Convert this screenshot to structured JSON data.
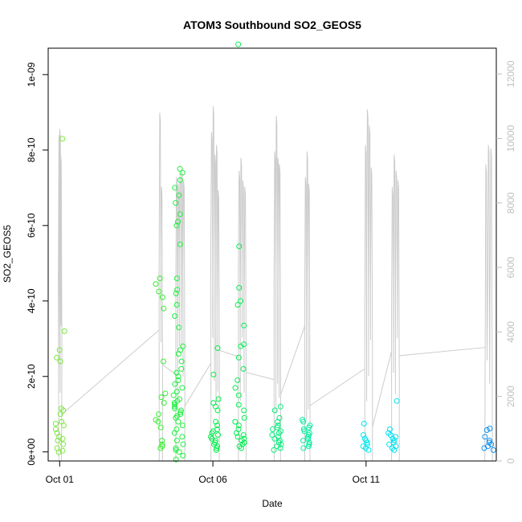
{
  "chart_data": {
    "type": "scatter",
    "title": "ATOM3 Southbound SO2_GEOS5",
    "xlabel": "Date",
    "ylabel": "SO2_GEOS5",
    "x_axis": {
      "type": "date",
      "lim": [
        "2017-09-30T15:00",
        "2017-10-15T06:00"
      ],
      "ticks": [
        "Oct 01",
        "Oct 06",
        "Oct 11"
      ],
      "tick_dates": [
        "2017-10-01",
        "2017-10-06",
        "2017-10-11"
      ]
    },
    "y_axis": {
      "lim": [
        -2.4e-11,
        1.07e-09
      ],
      "ticks": [
        "0e+00",
        "2e-10",
        "4e-10",
        "6e-10",
        "8e-10",
        "1e-09"
      ],
      "tick_values": [
        0,
        2e-10,
        4e-10,
        6e-10,
        8e-10,
        1e-09
      ]
    },
    "y2_axis": {
      "lim": [
        0,
        12800
      ],
      "ticks": [
        "0",
        "2000",
        "4000",
        "6000",
        "8000",
        "10000",
        "12000"
      ],
      "tick_values": [
        0,
        2000,
        4000,
        6000,
        8000,
        10000,
        12000
      ],
      "color": "#bfbfbf"
    },
    "grid": false,
    "colors": {
      "points_start": "#7fe640",
      "points_mid": "#00f060",
      "points_late": "#00e8f0",
      "points_end": "#1090f0",
      "altitude_line": "#cccccc",
      "axis": "#000000"
    },
    "points_series": {
      "name": "SO2_GEOS5",
      "note_color": "color ramps from yellow-green (early) through green, cyan to blue (late)",
      "clusters": [
        {
          "date": "2017-10-01T00:00",
          "color": "#7fe640",
          "values": [
            8.3e-10,
            3.2e-10,
            2.7e-10,
            2.5e-10,
            2.4e-10,
            1.15e-10,
            1.1e-10,
            1e-10,
            8e-11,
            7.5e-11,
            7e-11,
            6e-11,
            5e-11,
            4e-11,
            3.5e-11,
            3e-11,
            2e-11,
            1e-11,
            3e-12,
            -1e-12
          ]
        },
        {
          "date": "2017-10-04T07:00",
          "color": "#39ee30",
          "values": [
            4.6e-10,
            4.45e-10,
            4.25e-10,
            4.1e-10,
            3.8e-10,
            2.4e-10,
            1.55e-10,
            1.45e-10,
            1.3e-10,
            1e-10,
            8.5e-11,
            8e-11,
            6.5e-11,
            3e-11,
            2e-11,
            1.5e-11,
            1e-11
          ]
        },
        {
          "date": "2017-10-04T21:00",
          "color": "#20f040",
          "values": [
            7.5e-10,
            7.4e-10,
            7.2e-10,
            7e-10,
            6.8e-10,
            6.6e-10,
            6.3e-10,
            6.1e-10,
            6e-10,
            5.5e-10,
            4.6e-10,
            4.3e-10,
            4.2e-10,
            3.9e-10,
            3.6e-10,
            3.3e-10,
            2.8e-10,
            2.7e-10,
            2.6e-10,
            2.4e-10,
            2.2e-10,
            2.1e-10,
            2e-10,
            1.9e-10,
            1.8e-10,
            1.7e-10,
            1.6e-10,
            1.5e-10,
            1.4e-10,
            1.35e-10,
            1.3e-10,
            1.25e-10,
            1.2e-10,
            1.15e-10,
            1.1e-10,
            1.05e-10,
            1e-10,
            9.5e-11,
            9e-11,
            8e-11,
            7e-11,
            6e-11,
            5e-11,
            4e-11,
            3e-11,
            2e-11,
            1e-11,
            5e-12,
            0,
            -1e-11,
            -2e-11
          ]
        },
        {
          "date": "2017-10-06T02:00",
          "color": "#00f04a",
          "values": [
            2.75e-10,
            2.05e-10,
            1.4e-10,
            1.3e-10,
            1.2e-10,
            1.1e-10,
            8e-11,
            7e-11,
            6e-11,
            5.5e-11,
            5e-11,
            4.5e-11,
            4e-11,
            3.5e-11,
            3e-11,
            2.5e-11,
            2e-11,
            1.5e-11,
            1e-11,
            5e-12
          ]
        },
        {
          "date": "2017-10-06T21:00",
          "color": "#00f050",
          "values": [
            1.08e-09,
            5.45e-10,
            4.35e-10,
            4e-10,
            3.9e-10,
            3.35e-10,
            2.85e-10,
            2.8e-10,
            2.5e-10,
            2.2e-10,
            1.9e-10,
            1.7e-10,
            1.5e-10,
            1.25e-10,
            1.1e-10,
            9e-11,
            8e-11,
            7e-11,
            6e-11,
            5e-11,
            4.5e-11,
            4e-11,
            3.5e-11,
            3e-11,
            2.5e-11,
            2e-11,
            1.5e-11,
            1e-11
          ]
        },
        {
          "date": "2017-10-08T02:00",
          "color": "#00f07a",
          "values": [
            1.2e-10,
            1.1e-10,
            9e-11,
            8e-11,
            7e-11,
            6.5e-11,
            6e-11,
            5.5e-11,
            5e-11,
            4.5e-11,
            4e-11,
            3.5e-11,
            3e-11,
            2.5e-11,
            2e-11,
            1.5e-11,
            1e-11,
            5e-12
          ]
        },
        {
          "date": "2017-10-09T01:00",
          "color": "#00f0a0",
          "values": [
            8.5e-11,
            8e-11,
            7e-11,
            6.5e-11,
            6e-11,
            5.5e-11,
            5e-11,
            4.5e-11,
            4e-11,
            3.5e-11,
            3e-11,
            2.5e-11,
            2e-11,
            1.5e-11,
            1e-11
          ]
        },
        {
          "date": "2017-10-11T01:00",
          "color": "#00e8f0",
          "values": [
            7.5e-11,
            4.5e-11,
            3.5e-11,
            3e-11,
            2.5e-11,
            2e-11,
            1.5e-11,
            1e-11,
            5e-12
          ]
        },
        {
          "date": "2017-10-11T21:00",
          "color": "#00e0f0",
          "values": [
            1.35e-10,
            6e-11,
            5e-11,
            4.5e-11,
            4e-11,
            3.5e-11,
            3e-11,
            2.5e-11,
            2e-11,
            1.5e-11,
            1e-11,
            5e-12
          ]
        },
        {
          "date": "2017-10-15T00:00",
          "color": "#1090f0",
          "values": [
            6.2e-11,
            5.8e-11,
            4e-11,
            3e-11,
            2.5e-11,
            2e-11,
            1.5e-11,
            1e-11,
            5e-12
          ]
        }
      ]
    },
    "altitude_series": {
      "name": "",
      "axis": "right",
      "color": "#cccccc",
      "flights": [
        {
          "start": "2017-09-30T23:20",
          "end": "2017-10-01T01:20",
          "peak": 10300,
          "peaks": [
            10100,
            10300,
            9500
          ]
        },
        {
          "start": "2017-10-04T06:00",
          "end": "2017-10-04T08:30",
          "peak": 10800,
          "peaks": [
            10800,
            8500
          ]
        },
        {
          "start": "2017-10-04T19:00",
          "end": "2017-10-05T02:00",
          "peak": 9000,
          "peaks": [
            8800,
            8600,
            8900,
            9000,
            8700
          ]
        },
        {
          "start": "2017-10-05T22:30",
          "end": "2017-10-06T05:00",
          "peak": 11000,
          "peaks": [
            10200,
            11000,
            9500,
            9800,
            8400
          ]
        },
        {
          "start": "2017-10-06T20:00",
          "end": "2017-10-07T02:00",
          "peak": 9400,
          "peaks": [
            9000,
            9400,
            8700,
            8500
          ]
        },
        {
          "start": "2017-10-08T00:00",
          "end": "2017-10-08T05:00",
          "peak": 10700,
          "peaks": [
            9600,
            10700,
            9400,
            9200
          ]
        },
        {
          "start": "2017-10-09T00:00",
          "end": "2017-10-09T04:00",
          "peak": 9600,
          "peaks": [
            8800,
            9600,
            8600
          ]
        },
        {
          "start": "2017-10-10T23:00",
          "end": "2017-10-11T05:00",
          "peak": 10900,
          "peaks": [
            9800,
            10900,
            10400,
            9100
          ]
        },
        {
          "start": "2017-10-11T20:00",
          "end": "2017-10-12T02:00",
          "peak": 9500,
          "peaks": [
            8500,
            9500,
            9000,
            8700
          ]
        },
        {
          "start": "2017-10-14T21:00",
          "end": "2017-10-15T03:00",
          "peak": 9800,
          "peaks": [
            9200,
            9800,
            9700
          ]
        }
      ]
    }
  }
}
